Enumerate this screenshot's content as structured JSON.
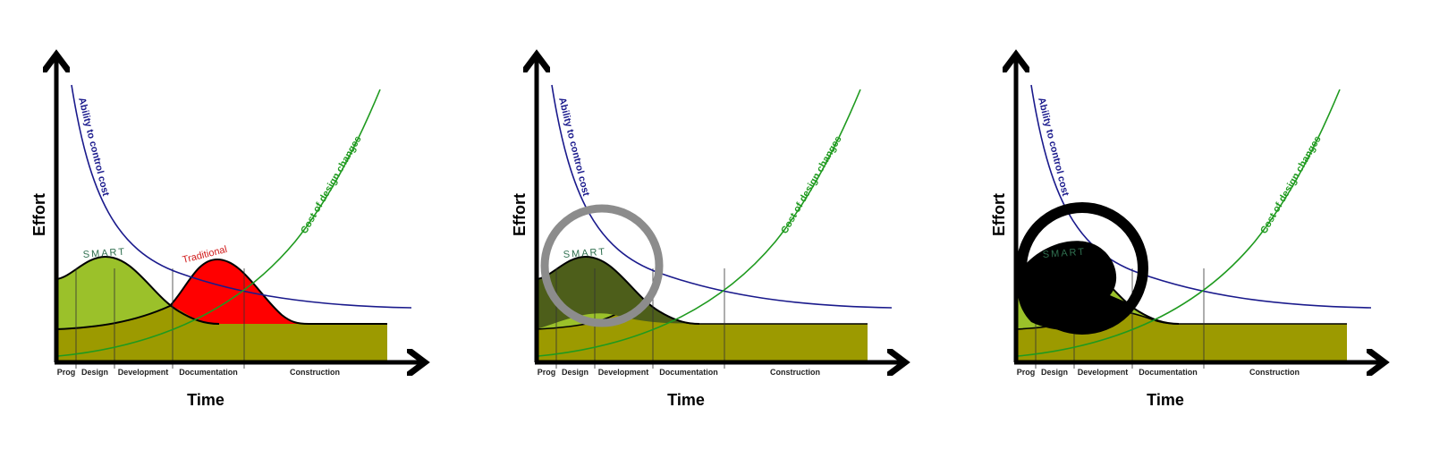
{
  "panels": [
    {
      "y_label": "Effort",
      "x_label": "Time",
      "phases": [
        "Prog",
        "Design",
        "Development",
        "Documentation",
        "Construction"
      ],
      "curve_ability": "Ability to control cost",
      "curve_cost": "Cost of design changes",
      "smart_label": "SMART",
      "traditional_label": "Traditional"
    },
    {
      "y_label": "Effort",
      "x_label": "Time",
      "phases": [
        "Prog",
        "Design",
        "Development",
        "Documentation",
        "Construction"
      ],
      "curve_ability": "Ability to control cost",
      "curve_cost": "Cost of design changes",
      "smart_label": "SMART",
      "highlight": "grey ring"
    },
    {
      "y_label": "Effort",
      "x_label": "Time",
      "phases": [
        "Prog",
        "Design",
        "Development",
        "Documentation",
        "Construction"
      ],
      "curve_ability": "Ability to control cost",
      "curve_cost": "Cost of design changes",
      "smart_label": "SMART",
      "highlight": "black ring"
    }
  ],
  "colors": {
    "smart_fill": "#9bc12a",
    "baseline_fill": "#9c9a00",
    "traditional_fill": "#ff0000",
    "ability_curve": "#1a1a8c",
    "cost_curve": "#1f9a1f",
    "smart_shaded": "#4d5e1a",
    "ring_grey": "#8c8c8c",
    "ring_black": "#000000"
  }
}
